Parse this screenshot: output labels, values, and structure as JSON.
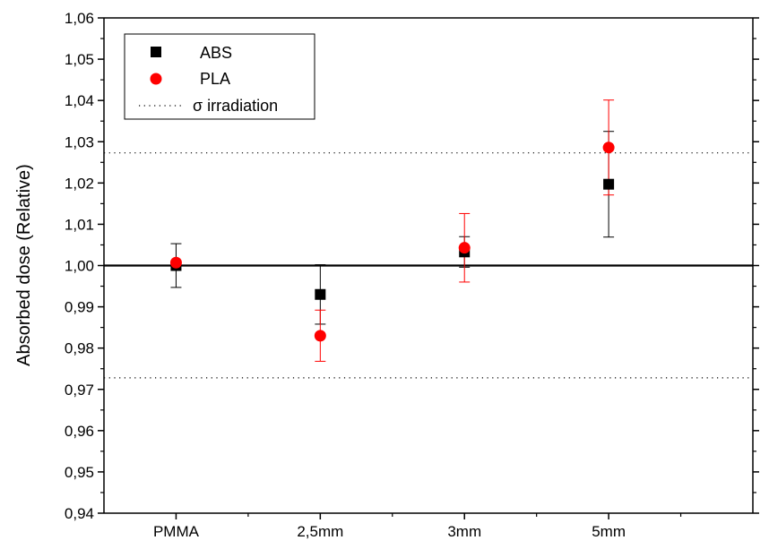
{
  "chart_data": {
    "type": "scatter",
    "title": "",
    "xlabel": "",
    "ylabel": "Absorbed dose (Relative)",
    "categories": [
      "PMMA",
      "2,5mm",
      "3mm",
      "5mm"
    ],
    "ylim": [
      0.94,
      1.06
    ],
    "yticks": [
      "0,94",
      "0,95",
      "0,96",
      "0,97",
      "0,98",
      "0,99",
      "1,00",
      "1,01",
      "1,02",
      "1,03",
      "1,04",
      "1,05",
      "1,06"
    ],
    "grid": false,
    "legend_position": "top-left",
    "reference_line": 1.0,
    "sigma_band": [
      0.9728,
      1.0273
    ],
    "series": [
      {
        "name": "ABS",
        "color": "#000000",
        "marker": "square",
        "values": [
          1.0,
          0.993,
          1.0033,
          1.0197
        ],
        "errors": [
          0.0053,
          0.0072,
          0.0037,
          0.0128
        ]
      },
      {
        "name": "PLA",
        "color": "#ff0000",
        "marker": "circle",
        "values": [
          1.0007,
          0.983,
          1.0043,
          1.0286
        ],
        "errors": [
          0.0005,
          0.0062,
          0.0083,
          0.0115
        ]
      }
    ],
    "legend_sigma_label": "σ irradiation"
  }
}
